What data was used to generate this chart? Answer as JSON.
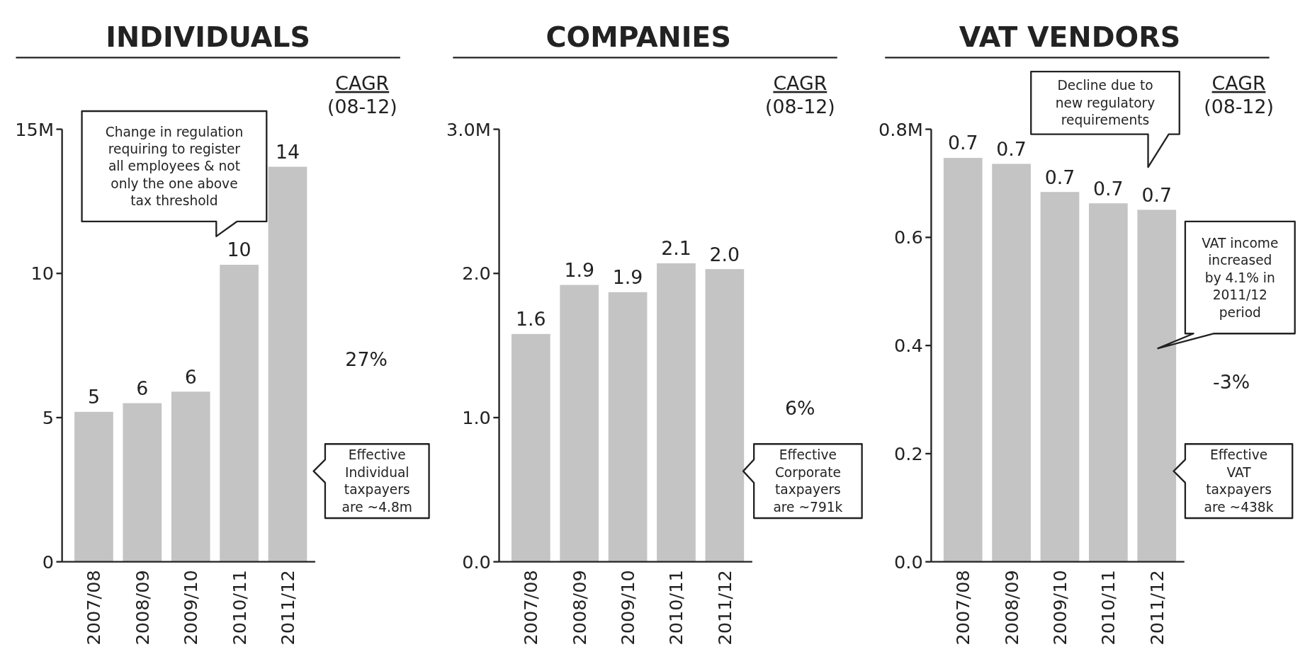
{
  "chart_data": [
    {
      "type": "bar",
      "title": "INDIVIDUALS",
      "categories": [
        "2007/08",
        "2008/09",
        "2009/10",
        "2010/11",
        "2011/12"
      ],
      "values": [
        5.2,
        5.5,
        5.9,
        10.3,
        13.7
      ],
      "color": "#c4c4c4",
      "value_labels": [
        "5",
        "6",
        "6",
        "10",
        "14"
      ],
      "ylim": [
        0,
        15
      ],
      "yticks": [
        0,
        5,
        10,
        {
          "value": 15,
          "label": "15M"
        }
      ],
      "annotations": [
        "CAGR (08-12)",
        "27%",
        "Change in regulation requiring to register all employees & not only the one above tax threshold",
        "Effective Individual taxpayers are ~4.8m"
      ]
    },
    {
      "type": "bar",
      "title": "COMPANIES",
      "categories": [
        "2007/08",
        "2008/09",
        "2009/10",
        "2010/11",
        "2011/12"
      ],
      "values": [
        1.58,
        1.92,
        1.87,
        2.07,
        2.03
      ],
      "color": "#c4c4c4",
      "value_labels": [
        "1.6",
        "1.9",
        "1.9",
        "2.1",
        "2.0"
      ],
      "ylim": [
        0,
        3
      ],
      "yticks": [
        {
          "value": 0,
          "label": "0.0"
        },
        {
          "value": 1,
          "label": "1.0"
        },
        {
          "value": 2,
          "label": "2.0"
        },
        {
          "value": 3,
          "label": "3.0M"
        }
      ],
      "annotations": [
        "CAGR (08-12)",
        "6%",
        "Effective Corporate taxpayers are ~791k"
      ]
    },
    {
      "type": "bar",
      "title": "VAT VENDORS",
      "categories": [
        "2007/08",
        "2008/09",
        "2009/10",
        "2010/11",
        "2011/12"
      ],
      "values": [
        0.747,
        0.736,
        0.684,
        0.663,
        0.651
      ],
      "color": "#c4c4c4",
      "value_labels": [
        "0.7",
        "0.7",
        "0.7",
        "0.7",
        "0.7"
      ],
      "ylim": [
        0,
        0.8
      ],
      "yticks": [
        {
          "value": 0,
          "label": "0.0"
        },
        0.2,
        0.4,
        0.6,
        {
          "value": 0.8,
          "label": "0.8M"
        }
      ],
      "annotations": [
        "CAGR (08-12)",
        "-3%",
        "Decline due to new regulatory requirements",
        "VAT income increased by 4.1% in 2011/12 period",
        "Effective VAT taxpayers are ~438k"
      ]
    }
  ]
}
